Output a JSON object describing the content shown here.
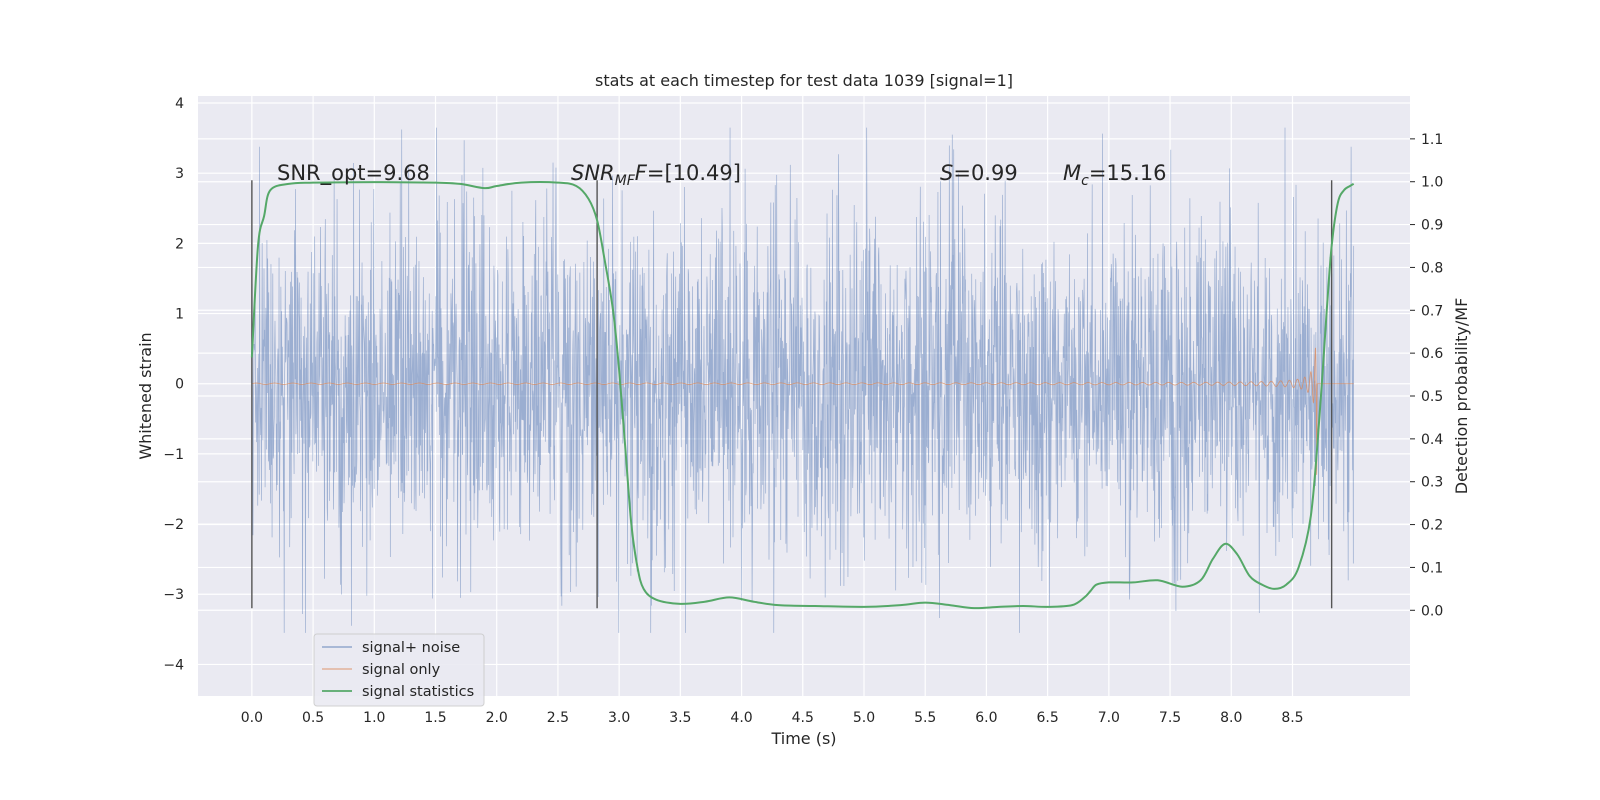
{
  "chart_data": {
    "type": "line",
    "title": "stats at each timestep for test data 1039 [signal=1]",
    "xlabel": "Time (s)",
    "ylabel": "Whitened strain",
    "ylabel_right": "Detection probability/MF",
    "xlim": [
      -0.44,
      9.46
    ],
    "ylim": [
      -4.45,
      4.1
    ],
    "ylim_right": [
      -0.2,
      1.2
    ],
    "x_ticks": [
      0.0,
      0.5,
      1.0,
      1.5,
      2.0,
      2.5,
      3.0,
      3.5,
      4.0,
      4.5,
      5.0,
      5.5,
      6.0,
      6.5,
      7.0,
      7.5,
      8.0,
      8.5
    ],
    "x_tick_labels": [
      "0.0",
      "0.5",
      "1.0",
      "1.5",
      "2.0",
      "2.5",
      "3.0",
      "3.5",
      "4.0",
      "4.5",
      "5.0",
      "5.5",
      "6.0",
      "6.5",
      "7.0",
      "7.5",
      "8.0",
      "8.5"
    ],
    "y_ticks": [
      4,
      3,
      2,
      1,
      0,
      -1,
      -2,
      -3,
      -4
    ],
    "y_tick_labels": [
      "4",
      "3",
      "2",
      "1",
      "0",
      "−1",
      "−2",
      "−3",
      "−4"
    ],
    "y_right_ticks": [
      1.1,
      1.0,
      0.9,
      0.8,
      0.7,
      0.6,
      0.5,
      0.4,
      0.3,
      0.2,
      0.1,
      0.0
    ],
    "y_right_tick_labels": [
      "1.1",
      "1.0",
      "0.9",
      "0.8",
      "0.7",
      "0.6",
      "0.5",
      "0.4",
      "0.3",
      "0.2",
      "0.1",
      "0.0"
    ],
    "grid": true,
    "series": [
      {
        "name": "signal+ noise",
        "color": "#4c72b0",
        "description": "whitened strain noise plus signal, roughly between -3.5 and 3.7",
        "x_range": [
          0.0,
          9.0
        ],
        "amplitude": 1.2
      },
      {
        "name": "signal only",
        "color": "#dd8452",
        "description": "chirp signal growing in amplitude until merger",
        "x_range": [
          0.0,
          9.0
        ],
        "merger_time": 8.7,
        "peak_amplitude": 2.3
      },
      {
        "name": "signal statistics",
        "color": "#55a868",
        "axis": "right",
        "x": [
          0.0,
          0.05,
          0.1,
          0.15,
          0.3,
          0.5,
          1.0,
          1.5,
          1.7,
          1.9,
          2.0,
          2.2,
          2.5,
          2.65,
          2.75,
          2.82,
          2.88,
          2.95,
          3.0,
          3.05,
          3.1,
          3.15,
          3.2,
          3.3,
          3.5,
          3.7,
          3.9,
          4.1,
          4.3,
          4.6,
          5.0,
          5.3,
          5.5,
          5.7,
          5.9,
          6.1,
          6.3,
          6.5,
          6.7,
          6.8,
          6.85,
          6.9,
          7.0,
          7.2,
          7.4,
          7.6,
          7.75,
          7.85,
          7.95,
          8.05,
          8.15,
          8.25,
          8.35,
          8.45,
          8.55,
          8.65,
          8.72,
          8.78,
          8.82,
          8.87,
          8.92,
          8.97,
          9.0
        ],
        "values": [
          0.59,
          0.85,
          0.92,
          0.98,
          0.995,
          0.998,
          0.999,
          0.998,
          0.995,
          0.985,
          0.99,
          0.998,
          0.998,
          0.99,
          0.96,
          0.91,
          0.82,
          0.7,
          0.56,
          0.38,
          0.2,
          0.1,
          0.05,
          0.025,
          0.015,
          0.02,
          0.03,
          0.02,
          0.012,
          0.01,
          0.008,
          0.012,
          0.018,
          0.012,
          0.005,
          0.008,
          0.01,
          0.008,
          0.012,
          0.03,
          0.045,
          0.06,
          0.065,
          0.065,
          0.07,
          0.055,
          0.07,
          0.12,
          0.155,
          0.13,
          0.08,
          0.06,
          0.05,
          0.06,
          0.1,
          0.22,
          0.45,
          0.7,
          0.85,
          0.95,
          0.98,
          0.99,
          0.995
        ]
      }
    ],
    "vertical_lines": [
      0.0,
      2.82,
      8.82
    ],
    "vertical_line_range": [
      -3.2,
      2.9
    ],
    "annotations": [
      {
        "text": "SNR_opt=9.68",
        "x": 0.2
      },
      {
        "text_main": "SNR",
        "text_sub": "MF",
        "text_rest": "=[10.49]",
        "x": 2.6
      },
      {
        "text_italic": "S",
        "text_rest": "=0.99",
        "x": 5.6
      },
      {
        "text_italic": "M",
        "text_sub": "c",
        "text_rest": "=15.16",
        "x": 6.6
      }
    ],
    "legend": {
      "position": "lower-left",
      "entries": [
        {
          "label": "signal+ noise",
          "color": "#4c72b0"
        },
        {
          "label": "signal only",
          "color": "#dd8452"
        },
        {
          "label": "signal statistics",
          "color": "#55a868"
        }
      ]
    }
  }
}
